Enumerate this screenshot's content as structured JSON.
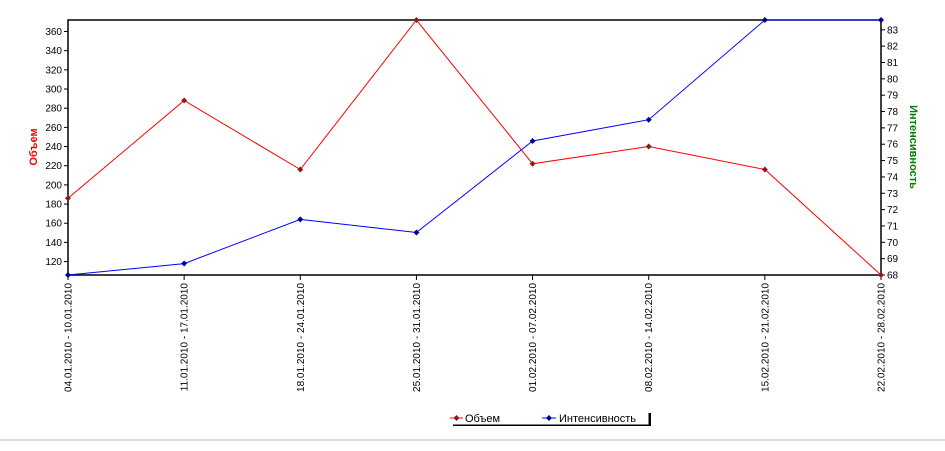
{
  "chart_data": {
    "type": "line",
    "categories": [
      "04.01.2010 - 10.01.2010",
      "11.01.2010 - 17.01.2010",
      "18.01.2010 - 24.01.2010",
      "25.01.2010 - 31.01.2010",
      "01.02.2010 - 07.02.2010",
      "08.02.2010 - 14.02.2010",
      "15.02.2010 - 21.02.2010",
      "22.02.2010 - 28.02.2010"
    ],
    "series": [
      {
        "name": "Объем",
        "axis": "left",
        "color": "#ff0000",
        "marker_color": "#8b1a1a",
        "values": [
          186,
          288,
          216,
          372,
          222,
          240,
          216,
          106
        ]
      },
      {
        "name": "Интенсивность",
        "axis": "right",
        "color": "#0000ff",
        "marker_color": "#00008b",
        "values": [
          68.0,
          68.7,
          71.4,
          70.6,
          76.2,
          77.5,
          83.6,
          83.6
        ]
      }
    ],
    "left_axis": {
      "label": "Объем",
      "color": "#ff0000",
      "ylim": [
        106,
        372
      ],
      "ticks": [
        120,
        140,
        160,
        180,
        200,
        220,
        240,
        260,
        280,
        300,
        320,
        340,
        360
      ]
    },
    "right_axis": {
      "label": "Интенсивность",
      "color": "#008000",
      "ylim": [
        68,
        83.6
      ],
      "ticks": [
        68,
        69,
        70,
        71,
        72,
        73,
        74,
        75,
        76,
        77,
        78,
        79,
        80,
        81,
        82,
        83
      ]
    },
    "grid": false,
    "legend_position": "bottom"
  }
}
